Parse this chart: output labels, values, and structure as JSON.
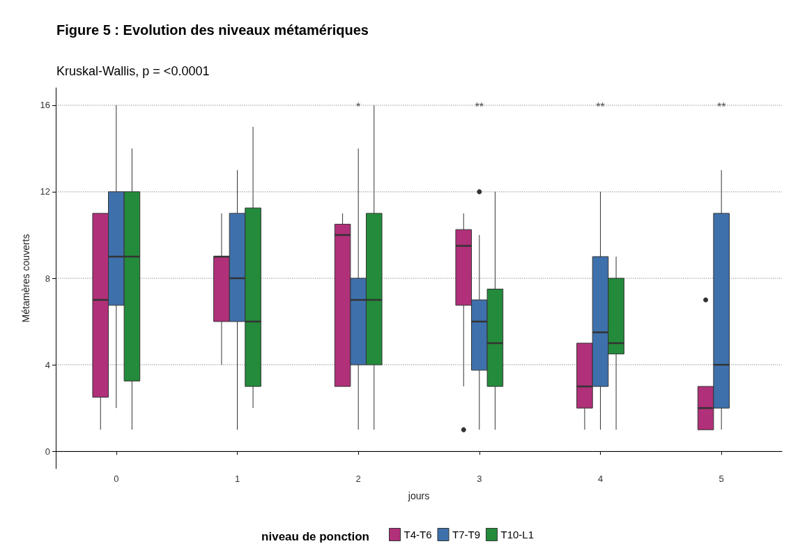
{
  "chart_data": {
    "type": "box",
    "title": "Figure 5 : Evolution des niveaux métamériques",
    "subtitle": "Kruskal-Wallis, p = <0.0001",
    "xlabel": "jours",
    "ylabel": "Métamères couverts",
    "legend_title": "niveau de ponction",
    "categories": [
      "0",
      "1",
      "2",
      "3",
      "4",
      "5"
    ],
    "ylim": [
      -0.8,
      16.8
    ],
    "yticks": [
      0,
      4,
      8,
      12,
      16
    ],
    "grid": "y",
    "legend": "bottom",
    "series": [
      {
        "name": "T4-T6",
        "color": "#b03079",
        "boxes": [
          {
            "low": 1,
            "q1": 2.5,
            "median": 7,
            "q3": 11,
            "high": 11
          },
          {
            "low": 4,
            "q1": 6,
            "median": 9,
            "q3": 9,
            "high": 11
          },
          {
            "low": 3,
            "q1": 3,
            "median": 10,
            "q3": 10.5,
            "high": 11
          },
          {
            "low": 3,
            "q1": 6.75,
            "median": 9.5,
            "q3": 10.25,
            "high": 11,
            "outliers": [
              1
            ]
          },
          {
            "low": 1,
            "q1": 2,
            "median": 3,
            "q3": 5,
            "high": 5
          },
          {
            "low": 1,
            "q1": 1,
            "median": 2,
            "q3": 3,
            "high": 3,
            "outliers": [
              7
            ]
          }
        ]
      },
      {
        "name": "T7-T9",
        "color": "#3e71ac",
        "boxes": [
          {
            "low": 2,
            "q1": 6.75,
            "median": 9,
            "q3": 12,
            "high": 16
          },
          {
            "low": 1,
            "q1": 6,
            "median": 8,
            "q3": 11,
            "high": 13
          },
          {
            "low": 1,
            "q1": 4,
            "median": 7,
            "q3": 8,
            "high": 14
          },
          {
            "low": 1,
            "q1": 3.75,
            "median": 6,
            "q3": 7,
            "high": 10,
            "outliers": [
              12
            ]
          },
          {
            "low": 1,
            "q1": 3,
            "median": 5.5,
            "q3": 9,
            "high": 12
          },
          {
            "low": 1,
            "q1": 2,
            "median": 4,
            "q3": 11,
            "high": 13
          }
        ]
      },
      {
        "name": "T10-L1",
        "color": "#238b3b",
        "boxes": [
          {
            "low": 1,
            "q1": 3.25,
            "median": 9,
            "q3": 12,
            "high": 14
          },
          {
            "low": 2,
            "q1": 3,
            "median": 6,
            "q3": 11.25,
            "high": 15
          },
          {
            "low": 1,
            "q1": 4,
            "median": 7,
            "q3": 11,
            "high": 16
          },
          {
            "low": 1,
            "q1": 3,
            "median": 5,
            "q3": 7.5,
            "high": 12
          },
          {
            "low": 1,
            "q1": 4.5,
            "median": 5,
            "q3": 8,
            "high": 9
          },
          null
        ]
      }
    ],
    "annotations": [
      "*",
      "**",
      "**",
      "**"
    ]
  }
}
